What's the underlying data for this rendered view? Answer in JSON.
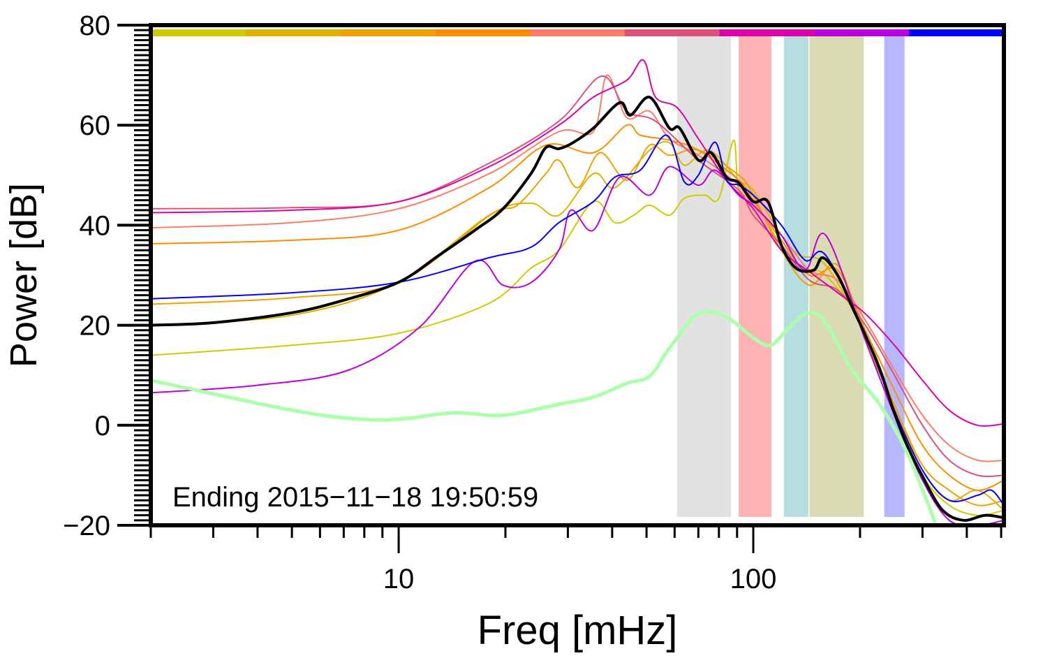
{
  "chart_data": {
    "type": "line",
    "title": "",
    "xlabel": "Freq [mHz]",
    "ylabel": "Power [dB]",
    "xscale": "log",
    "xlim": [
      2,
      509
    ],
    "ylim": [
      -20,
      80
    ],
    "x_tick_labels": [
      {
        "value": 10,
        "label": "10"
      },
      {
        "value": 100,
        "label": "100"
      }
    ],
    "y_tick_labels": [
      {
        "value": -20,
        "label": "−20"
      },
      {
        "value": 0,
        "label": "0"
      },
      {
        "value": 20,
        "label": "20"
      },
      {
        "value": 40,
        "label": "40"
      },
      {
        "value": 60,
        "label": "60"
      },
      {
        "value": 80,
        "label": "80"
      }
    ],
    "annotation": "Ending 2015−11−18 19:50:59",
    "grid": false,
    "top_color_bar": [
      "#cccc00",
      "#ddb300",
      "#f0a000",
      "#ff8c00",
      "#ff7b66",
      "#dd5077",
      "#dd00aa",
      "#bb00dd",
      "#0000ff"
    ],
    "bands": [
      {
        "from": 61,
        "to": 86.5,
        "color": "#e2e2e2"
      },
      {
        "from": 91,
        "to": 112.5,
        "color": "#ffb3b3"
      },
      {
        "from": 122,
        "to": 143,
        "color": "#b6dde0"
      },
      {
        "from": 144,
        "to": 205,
        "color": "#dadab4"
      },
      {
        "from": 234,
        "to": 267,
        "color": "#b7b7ff"
      }
    ],
    "series": [
      {
        "name": "yellow",
        "color": "#cccc00",
        "width": 2,
        "points": [
          [
            2,
            14
          ],
          [
            5,
            16
          ],
          [
            10,
            18.4
          ],
          [
            18,
            24.4
          ],
          [
            23.6,
            31.4
          ],
          [
            28.3,
            35
          ],
          [
            35.4,
            44.7
          ],
          [
            40.7,
            40.5
          ],
          [
            46,
            42
          ],
          [
            51,
            44
          ],
          [
            58,
            42
          ],
          [
            64,
            45.4
          ],
          [
            73,
            46
          ],
          [
            80,
            45.4
          ],
          [
            88,
            57
          ],
          [
            91,
            47
          ],
          [
            100,
            45
          ],
          [
            120,
            36
          ],
          [
            140,
            31
          ],
          [
            160,
            30
          ],
          [
            207,
            19
          ],
          [
            250,
            3
          ],
          [
            300,
            -10
          ],
          [
            357,
            -16
          ],
          [
            429,
            -18
          ],
          [
            509,
            -17
          ]
        ]
      },
      {
        "name": "gold",
        "color": "#ddb300",
        "width": 2,
        "points": [
          [
            2,
            20
          ],
          [
            5,
            22
          ],
          [
            10,
            28.6
          ],
          [
            18,
            42
          ],
          [
            23.6,
            44.4
          ],
          [
            28.3,
            42
          ],
          [
            35.4,
            50.3
          ],
          [
            40.7,
            47.5
          ],
          [
            51,
            55
          ],
          [
            58,
            56.5
          ],
          [
            64,
            52
          ],
          [
            75,
            55
          ],
          [
            91,
            49
          ],
          [
            100,
            47
          ],
          [
            120,
            38
          ],
          [
            135,
            34
          ],
          [
            160,
            32
          ],
          [
            207,
            18
          ],
          [
            250,
            4
          ],
          [
            300,
            -9
          ],
          [
            357,
            -15
          ],
          [
            429,
            -13
          ],
          [
            509,
            -17
          ]
        ]
      },
      {
        "name": "light-orange",
        "color": "#f0a000",
        "width": 2,
        "points": [
          [
            2,
            24.2
          ],
          [
            5,
            25.5
          ],
          [
            10,
            28.6
          ],
          [
            18,
            41.9
          ],
          [
            21.6,
            44
          ],
          [
            26,
            50.3
          ],
          [
            28.3,
            53
          ],
          [
            32,
            47.5
          ],
          [
            37,
            54.5
          ],
          [
            44,
            49
          ],
          [
            51,
            56
          ],
          [
            58,
            54
          ],
          [
            70,
            55
          ],
          [
            91,
            50
          ],
          [
            100,
            46
          ],
          [
            120,
            35
          ],
          [
            144,
            28
          ],
          [
            173,
            32
          ],
          [
            207,
            17
          ],
          [
            250,
            4
          ],
          [
            300,
            -8
          ],
          [
            357,
            -13
          ],
          [
            429,
            -16
          ],
          [
            509,
            -15
          ]
        ]
      },
      {
        "name": "orange",
        "color": "#ff8c00",
        "width": 2,
        "points": [
          [
            2,
            36.3
          ],
          [
            5,
            37
          ],
          [
            10,
            39
          ],
          [
            18,
            47.5
          ],
          [
            26,
            56
          ],
          [
            35.4,
            54.5
          ],
          [
            44,
            60
          ],
          [
            48,
            58
          ],
          [
            58,
            57
          ],
          [
            70,
            55
          ],
          [
            91,
            49
          ],
          [
            100,
            45
          ],
          [
            120,
            37
          ],
          [
            144,
            30
          ],
          [
            173,
            31
          ],
          [
            207,
            19
          ],
          [
            250,
            7
          ],
          [
            300,
            -4
          ],
          [
            357,
            -10
          ],
          [
            429,
            -13
          ],
          [
            509,
            -11
          ]
        ]
      },
      {
        "name": "salmon",
        "color": "#ff7b66",
        "width": 2,
        "points": [
          [
            2,
            39.5
          ],
          [
            5,
            40.5
          ],
          [
            10,
            43.3
          ],
          [
            18,
            50.3
          ],
          [
            28.3,
            58.7
          ],
          [
            35.4,
            58.7
          ],
          [
            38.7,
            70
          ],
          [
            44,
            61.5
          ],
          [
            51,
            62.8
          ],
          [
            58,
            57.3
          ],
          [
            70,
            54
          ],
          [
            91,
            48
          ],
          [
            100,
            44
          ],
          [
            120,
            38
          ],
          [
            144,
            31
          ],
          [
            173,
            29
          ],
          [
            207,
            21
          ],
          [
            250,
            11
          ],
          [
            300,
            2
          ],
          [
            357,
            -4
          ],
          [
            429,
            -7
          ],
          [
            509,
            -7
          ]
        ]
      },
      {
        "name": "rose",
        "color": "#dd5077",
        "width": 2,
        "points": [
          [
            2,
            43.3
          ],
          [
            5,
            43.5
          ],
          [
            10,
            44.7
          ],
          [
            18,
            52.4
          ],
          [
            28.3,
            60.8
          ],
          [
            37.4,
            69.8
          ],
          [
            44,
            62.8
          ],
          [
            53,
            60.8
          ],
          [
            70,
            53
          ],
          [
            91,
            47
          ],
          [
            100,
            42
          ],
          [
            120,
            36
          ],
          [
            144,
            29
          ],
          [
            173,
            27
          ],
          [
            207,
            20
          ],
          [
            250,
            10
          ],
          [
            300,
            0
          ],
          [
            357,
            -7
          ],
          [
            429,
            -10
          ],
          [
            509,
            -10
          ]
        ]
      },
      {
        "name": "magenta",
        "color": "#dd00aa",
        "width": 2,
        "points": [
          [
            2,
            42.5
          ],
          [
            5,
            43
          ],
          [
            10,
            44.7
          ],
          [
            18,
            51.7
          ],
          [
            28.3,
            60
          ],
          [
            35.4,
            65.6
          ],
          [
            44,
            69
          ],
          [
            49,
            73
          ],
          [
            53,
            65.6
          ],
          [
            61,
            63.5
          ],
          [
            70,
            57.3
          ],
          [
            84,
            49
          ],
          [
            100,
            43.3
          ],
          [
            120,
            35
          ],
          [
            144,
            30.7
          ],
          [
            173,
            26.5
          ],
          [
            207,
            22.3
          ],
          [
            250,
            16
          ],
          [
            300,
            9
          ],
          [
            357,
            3
          ],
          [
            429,
            0
          ],
          [
            509,
            0.3
          ]
        ]
      },
      {
        "name": "purple",
        "color": "#bb00dd",
        "width": 2,
        "points": [
          [
            2,
            6.5
          ],
          [
            4,
            8
          ],
          [
            7.2,
            11
          ],
          [
            11.4,
            19.5
          ],
          [
            16.4,
            32.8
          ],
          [
            19.7,
            28
          ],
          [
            23.6,
            28.5
          ],
          [
            28.3,
            35
          ],
          [
            30.6,
            43
          ],
          [
            35.4,
            39
          ],
          [
            42,
            49.6
          ],
          [
            51,
            46
          ],
          [
            58,
            51.7
          ],
          [
            70,
            48
          ],
          [
            78,
            51
          ],
          [
            91,
            46
          ],
          [
            100,
            44
          ],
          [
            120,
            38
          ],
          [
            140,
            31
          ],
          [
            160,
            38
          ],
          [
            207,
            17
          ],
          [
            250,
            2
          ],
          [
            300,
            -11
          ],
          [
            357,
            -19
          ],
          [
            429,
            -20
          ],
          [
            509,
            -19
          ]
        ]
      },
      {
        "name": "blue",
        "color": "#0000ff",
        "width": 2,
        "points": [
          [
            2,
            25.3
          ],
          [
            5,
            26.5
          ],
          [
            10,
            28.6
          ],
          [
            18,
            33.5
          ],
          [
            23.6,
            35.6
          ],
          [
            28.3,
            40.5
          ],
          [
            35.4,
            44.7
          ],
          [
            40.7,
            49.6
          ],
          [
            48,
            51
          ],
          [
            57,
            58
          ],
          [
            64,
            48.6
          ],
          [
            70,
            50
          ],
          [
            78,
            56.6
          ],
          [
            84,
            49
          ],
          [
            91,
            48
          ],
          [
            100,
            46
          ],
          [
            120,
            40
          ],
          [
            140,
            33
          ],
          [
            160,
            34
          ],
          [
            207,
            18
          ],
          [
            250,
            3
          ],
          [
            300,
            -9
          ],
          [
            357,
            -15
          ],
          [
            429,
            -14
          ],
          [
            470,
            -13
          ],
          [
            509,
            -16
          ]
        ]
      },
      {
        "name": "mean",
        "color": "#000000",
        "width": 4,
        "points": [
          [
            2,
            20
          ],
          [
            3,
            20.5
          ],
          [
            5,
            22.5
          ],
          [
            7,
            25
          ],
          [
            10,
            28.6
          ],
          [
            13,
            34
          ],
          [
            16.4,
            39
          ],
          [
            19.7,
            43.3
          ],
          [
            23.6,
            50.3
          ],
          [
            26,
            55.5
          ],
          [
            28.3,
            55.3
          ],
          [
            31,
            56.5
          ],
          [
            35.4,
            59.4
          ],
          [
            42,
            64.5
          ],
          [
            45,
            62
          ],
          [
            51,
            65.6
          ],
          [
            58,
            59.4
          ],
          [
            62,
            59.4
          ],
          [
            70,
            53
          ],
          [
            76,
            54.5
          ],
          [
            84,
            49.6
          ],
          [
            91,
            48.5
          ],
          [
            100,
            44.7
          ],
          [
            110,
            44.7
          ],
          [
            120,
            36
          ],
          [
            132,
            31.4
          ],
          [
            148,
            31
          ],
          [
            157,
            33.5
          ],
          [
            173,
            30
          ],
          [
            190,
            23.7
          ],
          [
            207,
            18
          ],
          [
            228,
            11
          ],
          [
            249,
            2.8
          ],
          [
            272,
            -4.2
          ],
          [
            298,
            -9.8
          ],
          [
            340,
            -16.8
          ],
          [
            390,
            -19
          ],
          [
            450,
            -18
          ],
          [
            509,
            -18.5
          ]
        ]
      },
      {
        "name": "green",
        "color": "#aaffaa",
        "width": 5,
        "points": [
          [
            2,
            9
          ],
          [
            4.6,
            3.5
          ],
          [
            7.2,
            1.4
          ],
          [
            10,
            1.2
          ],
          [
            14.3,
            2.5
          ],
          [
            19.7,
            2
          ],
          [
            28.3,
            4.2
          ],
          [
            35.4,
            5.6
          ],
          [
            44,
            8.4
          ],
          [
            51,
            9.8
          ],
          [
            58,
            15.4
          ],
          [
            70,
            22.3
          ],
          [
            84,
            21.6
          ],
          [
            100,
            17.5
          ],
          [
            112,
            16
          ],
          [
            126,
            19.5
          ],
          [
            141,
            22.3
          ],
          [
            158,
            21
          ],
          [
            190,
            11
          ],
          [
            227,
            4.2
          ],
          [
            272,
            -5.6
          ],
          [
            326,
            -19.5
          ]
        ]
      }
    ]
  }
}
